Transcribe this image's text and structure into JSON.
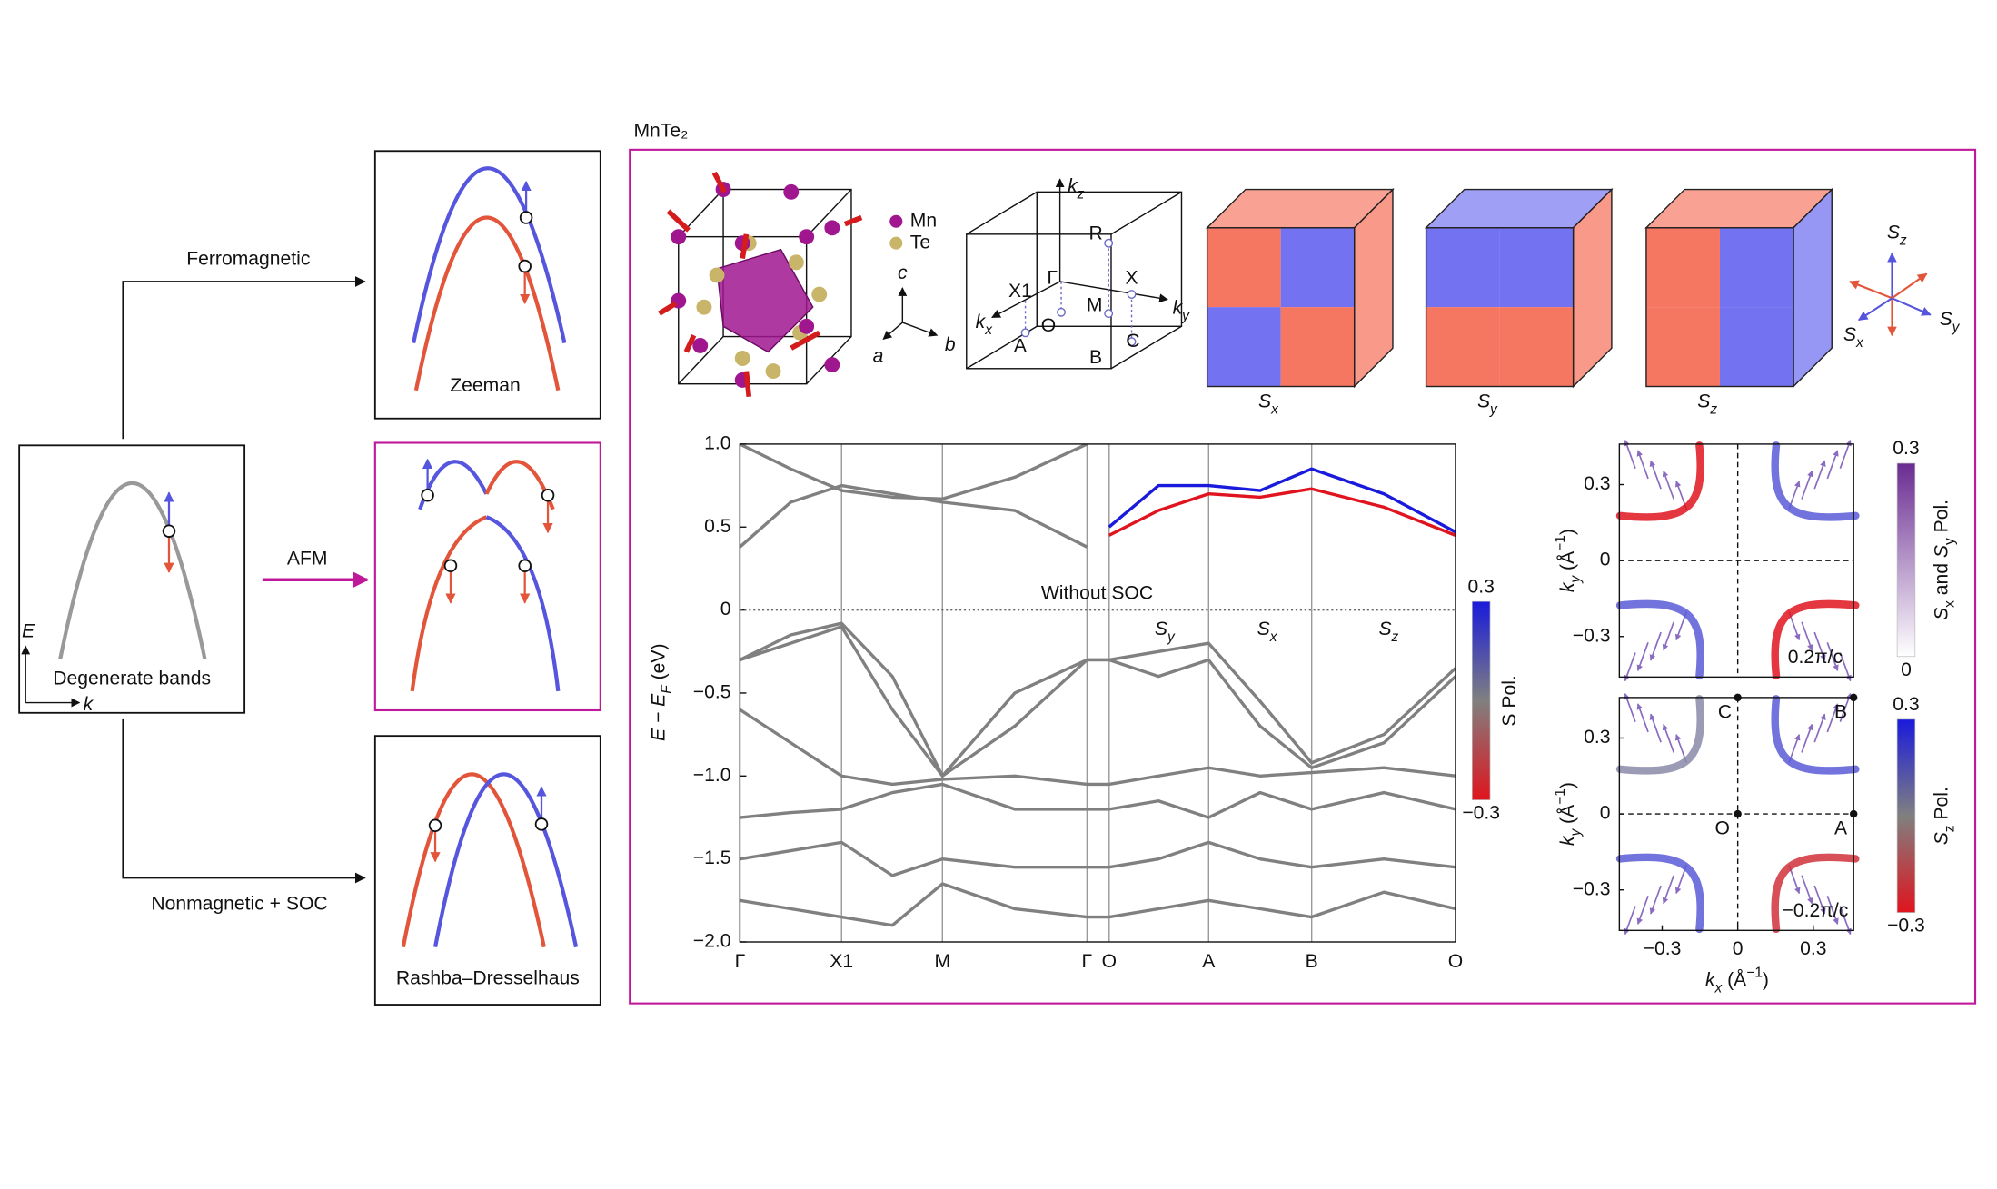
{
  "figure": {
    "material": "MnTe₂"
  },
  "panel_a": {
    "ferromagnetic": "Ferromagnetic",
    "afm": "AFM",
    "nonmagnetic_soc": "Nonmagnetic + SOC",
    "degenerate": "Degenerate bands",
    "e_axis": "E",
    "k_axis": "k",
    "zeeman": "Zeeman",
    "rashba": "Rashba–Dresselhaus"
  },
  "structure": {
    "mn": "Mn",
    "te": "Te",
    "a": "a",
    "b": "b",
    "c": "c"
  },
  "bz": {
    "points": [
      "R",
      "X1",
      "Γ",
      "X",
      "M",
      "O",
      "A",
      "B",
      "C"
    ],
    "axes": [
      {
        "main": "k",
        "sub": "z"
      },
      {
        "main": "k",
        "sub": "x"
      },
      {
        "main": "k",
        "sub": "y"
      }
    ]
  },
  "cubes": [
    {
      "main": "S",
      "sub": "x"
    },
    {
      "main": "S",
      "sub": "y"
    },
    {
      "main": "S",
      "sub": "z"
    }
  ],
  "spin_axes": [
    {
      "main": "S",
      "sub": "z"
    },
    {
      "main": "S",
      "sub": "x"
    },
    {
      "main": "S",
      "sub": "y"
    }
  ],
  "chart_data": [
    {
      "type": "line",
      "annotation": "Without SOC",
      "spin_labels": [
        {
          "main": "S",
          "sub": "y"
        },
        {
          "main": "S",
          "sub": "x"
        },
        {
          "main": "S",
          "sub": "z"
        }
      ],
      "ylabel": [
        "E − E",
        "F",
        " (eV)"
      ],
      "x": [
        0,
        0.071,
        0.142,
        0.213,
        0.283,
        0.384,
        0.485,
        0.516,
        0.585,
        0.655,
        0.727,
        0.799,
        0.9,
        1.0
      ],
      "xlim": [
        0,
        1
      ],
      "xticks": [
        {
          "value": 0,
          "label": "Γ"
        },
        {
          "value": 0.142,
          "label": "X1"
        },
        {
          "value": 0.283,
          "label": "M"
        },
        {
          "value": 0.485,
          "label": "Γ"
        },
        {
          "value": 0.516,
          "label": "O"
        },
        {
          "value": 0.655,
          "label": "A"
        },
        {
          "value": 0.799,
          "label": "B"
        },
        {
          "value": 1.0,
          "label": "O"
        }
      ],
      "ylim": [
        -2,
        1
      ],
      "yticks": [
        {
          "value": 1,
          "label": "1.0"
        },
        0.5,
        0,
        {
          "value": -0.5,
          "label": "−0.5"
        },
        {
          "value": -1,
          "label": "−1.0"
        },
        {
          "value": -1.5,
          "label": "−1.5"
        },
        {
          "value": -2,
          "label": "−2.0"
        }
      ],
      "grid": "x",
      "zero_line": true,
      "series": [
        {
          "color": "#808080",
          "values": [
            0.38,
            0.65,
            0.75,
            0.7,
            0.65,
            0.6,
            0.38,
            null,
            null,
            null,
            null,
            null,
            null,
            null
          ]
        },
        {
          "color": "#808080",
          "values": [
            1.0,
            0.85,
            0.72,
            0.68,
            0.67,
            0.8,
            1.0,
            null,
            null,
            null,
            null,
            null,
            null,
            null
          ]
        },
        {
          "color": "#808080",
          "values": [
            -0.3,
            -0.15,
            -0.08,
            -0.4,
            -1.0,
            -0.5,
            -0.3,
            -0.3,
            -0.25,
            -0.2,
            -0.55,
            -0.92,
            -0.75,
            -0.35
          ]
        },
        {
          "color": "#808080",
          "values": [
            -0.3,
            -0.2,
            -0.1,
            -0.6,
            -1.0,
            -0.7,
            -0.3,
            -0.3,
            -0.4,
            -0.3,
            -0.7,
            -0.95,
            -0.8,
            -0.4
          ]
        },
        {
          "color": "#808080",
          "values": [
            -0.6,
            -0.8,
            -1.0,
            -1.05,
            -1.02,
            -1.0,
            -1.05,
            -1.05,
            -1.0,
            -0.95,
            -1.0,
            -0.98,
            -0.95,
            -1.0
          ]
        },
        {
          "color": "#808080",
          "values": [
            -1.25,
            -1.22,
            -1.2,
            -1.1,
            -1.05,
            -1.2,
            -1.2,
            -1.2,
            -1.15,
            -1.25,
            -1.1,
            -1.2,
            -1.1,
            -1.2
          ]
        },
        {
          "color": "#808080",
          "values": [
            -1.5,
            -1.45,
            -1.4,
            -1.6,
            -1.5,
            -1.55,
            -1.55,
            -1.55,
            -1.5,
            -1.4,
            -1.5,
            -1.55,
            -1.5,
            -1.55
          ]
        },
        {
          "color": "#808080",
          "values": [
            -1.75,
            -1.8,
            -1.85,
            -1.9,
            -1.65,
            -1.8,
            -1.85,
            -1.85,
            -1.8,
            -1.75,
            -1.8,
            -1.85,
            -1.7,
            -1.8
          ]
        },
        {
          "color": "#e0141e",
          "values": [
            null,
            null,
            null,
            null,
            null,
            null,
            null,
            0.45,
            0.6,
            0.7,
            0.68,
            0.73,
            0.62,
            0.45
          ]
        },
        {
          "color": "#1a1adc",
          "values": [
            null,
            null,
            null,
            null,
            null,
            null,
            null,
            0.5,
            0.75,
            0.75,
            0.72,
            0.85,
            0.7,
            0.47
          ]
        }
      ],
      "colorbar": {
        "label": "S Pol.",
        "lim": [
          -0.3,
          0.3
        ],
        "ticks": [
          0.3,
          {
            "value": -0.3,
            "label": "−0.3"
          }
        ],
        "colors": [
          "#e0141e",
          "#808080",
          "#1a1adc"
        ]
      }
    },
    {
      "type": "contour",
      "xlim": [
        -0.47,
        0.46
      ],
      "ylim": [
        -0.46,
        0.46
      ],
      "yticks": [
        0.3,
        0,
        {
          "value": -0.3,
          "label": "−0.3"
        }
      ],
      "ylabel": [
        "k",
        "y",
        " (Å",
        "−1",
        ")"
      ],
      "annotations": [
        "0.2π/c"
      ],
      "colorbar": {
        "label": [
          "S",
          "x",
          " and ",
          "S",
          "y",
          " Pol."
        ],
        "lim": [
          0,
          0.3
        ],
        "ticks": [
          0.3,
          0
        ],
        "colors": [
          "#ffffff",
          "#6a2c91"
        ]
      }
    },
    {
      "type": "contour",
      "xlim": [
        -0.47,
        0.46
      ],
      "ylim": [
        -0.46,
        0.46
      ],
      "yticks": [
        0.3,
        0,
        {
          "value": -0.3,
          "label": "−0.3"
        }
      ],
      "xticks": [
        {
          "value": -0.3,
          "label": "−0.3"
        },
        0,
        0.3
      ],
      "ylabel": [
        "k",
        "y",
        " (Å",
        "−1",
        ")"
      ],
      "xlabel": [
        "k",
        "x",
        " (Å",
        "−1",
        ")"
      ],
      "annotations": [
        "−0.2π/c"
      ],
      "points": [
        "C",
        "B",
        "O",
        "A"
      ],
      "colorbar": {
        "label": [
          "S",
          "z",
          " Pol."
        ],
        "lim": [
          -0.3,
          0.3
        ],
        "ticks": [
          0.3,
          {
            "value": -0.3,
            "label": "−0.3"
          }
        ],
        "colors": [
          "#e0141e",
          "#808080",
          "#1a1adc"
        ]
      }
    }
  ]
}
